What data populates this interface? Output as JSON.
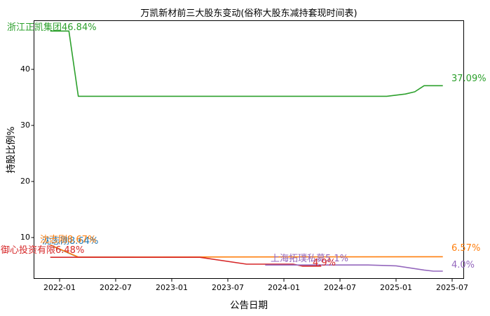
{
  "chart_data": {
    "type": "line",
    "title": "万凯新材前三大股东变动(俗称大股东减持套现时间表)",
    "xlabel": "公告日期",
    "ylabel": "持股比例%",
    "x_tick_labels": [
      "2022-01",
      "2022-07",
      "2023-01",
      "2023-07",
      "2024-01",
      "2024-07",
      "2025-01",
      "2025-07"
    ],
    "y_tick_labels": [
      "10",
      "20",
      "30",
      "40"
    ],
    "ylim": [
      2.6,
      48.8
    ],
    "x_unit": "announcement date (YYYY-MM)",
    "y_unit": "percent shareholding",
    "grid": false,
    "legend": "inline annotations at line start and end",
    "background_color": "#ffffff",
    "spine_color": "#000000",
    "series": [
      {
        "name": "浙江正凯集团",
        "color": "#2ca02c",
        "start_label": "浙江正凯集团46.84%",
        "end_label": "37.09%",
        "points": [
          [
            "2021-12",
            46.84
          ],
          [
            "2022-02",
            46.84
          ],
          [
            "2022-03",
            35.2
          ],
          [
            "2024-12",
            35.2
          ],
          [
            "2025-02",
            35.6
          ],
          [
            "2025-03",
            36.0
          ],
          [
            "2025-04",
            37.09
          ],
          [
            "2025-06",
            37.09
          ]
        ]
      },
      {
        "name": "沈志刚",
        "color": "#ff7f0e",
        "start_label": "沈志刚8.67%",
        "end_label": "6.57%",
        "points": [
          [
            "2021-12",
            8.67
          ],
          [
            "2022-03",
            6.51
          ],
          [
            "2025-06",
            6.57
          ]
        ]
      },
      {
        "name": "沈志刚",
        "color": "#1f77b4",
        "start_label": "沈志刚8.64%",
        "end_label": "",
        "occluded_by_orange_series": true,
        "points": [
          [
            "2021-12",
            8.64
          ],
          [
            "2022-03",
            6.49
          ],
          [
            "2022-09",
            6.49
          ]
        ]
      },
      {
        "name": "御心投资有限",
        "color": "#d62728",
        "start_label": "御心投资有限6.48%",
        "end_label": "4.9%",
        "points": [
          [
            "2021-12",
            6.48
          ],
          [
            "2023-04",
            6.48
          ],
          [
            "2023-09",
            5.25
          ],
          [
            "2024-02",
            5.25
          ],
          [
            "2024-03",
            4.9
          ],
          [
            "2024-05",
            4.9
          ]
        ]
      },
      {
        "name": "上海拓璞私募",
        "color": "#9467bd",
        "start_label": "上海拓璞私募5.1%",
        "end_label": "4.0%",
        "points": [
          [
            "2023-11",
            5.1
          ],
          [
            "2024-10",
            5.1
          ],
          [
            "2025-01",
            4.95
          ],
          [
            "2025-04",
            4.2
          ],
          [
            "2025-05",
            4.0
          ],
          [
            "2025-06",
            4.0
          ]
        ]
      }
    ]
  }
}
